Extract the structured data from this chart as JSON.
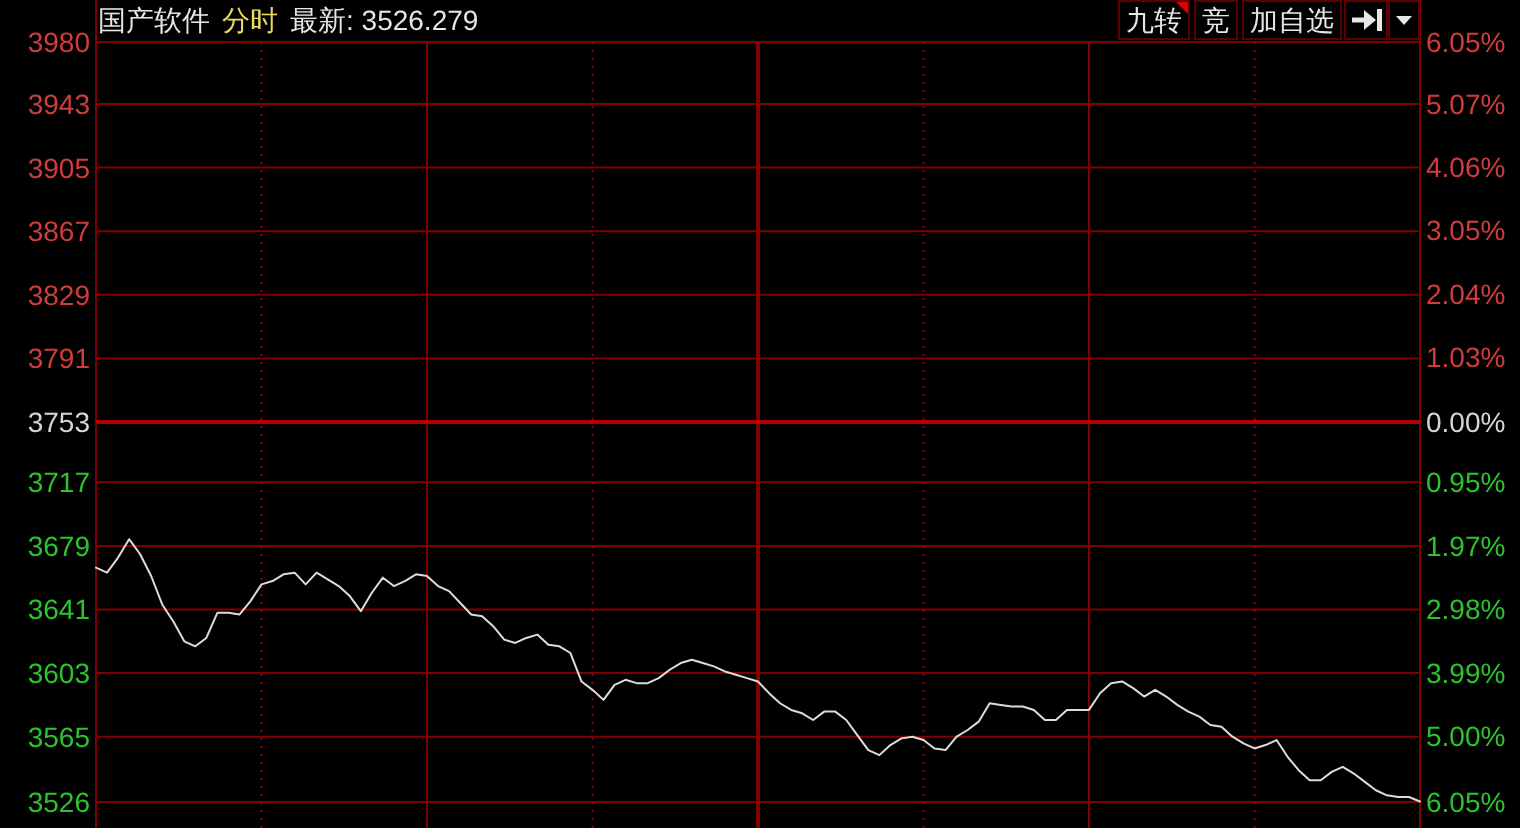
{
  "chart_data": {
    "type": "line",
    "title": "国产软件",
    "subtitle": "分时",
    "annotations": [
      "最新: 3526.279",
      "九转",
      "竞",
      "加自选"
    ],
    "categories": [
      null,
      null,
      null,
      null,
      null,
      null,
      null,
      null,
      null,
      null,
      null,
      null,
      null,
      null,
      null,
      null,
      null,
      null,
      null,
      null,
      null,
      null,
      null,
      null,
      null,
      null,
      null,
      null,
      null,
      null,
      null,
      null,
      null,
      null,
      null,
      null,
      null,
      null,
      null,
      null,
      null,
      null,
      null,
      null,
      null,
      null,
      null,
      null,
      null,
      null,
      null,
      null,
      null,
      null,
      null,
      null,
      null,
      null,
      null,
      null,
      null,
      null,
      null,
      null,
      null,
      null,
      null,
      null,
      null,
      null,
      null,
      null,
      null,
      null,
      null,
      null,
      null,
      null,
      null,
      null,
      null,
      null,
      null,
      null,
      null,
      null,
      null,
      null,
      null,
      null,
      null,
      null,
      null,
      null,
      null,
      null,
      null,
      null,
      null,
      null,
      null,
      null,
      null,
      null,
      null,
      null,
      null,
      null,
      null,
      null,
      null,
      null,
      null,
      null,
      null,
      null,
      null,
      null,
      null,
      null,
      null
    ],
    "values": [
      3666,
      3663,
      3672,
      3683,
      3674,
      3661,
      3644,
      3634,
      3622,
      3619,
      3624,
      3639,
      3639,
      3638,
      3646,
      3656,
      3658,
      3662,
      3663,
      3656,
      3663,
      3659,
      3655,
      3649,
      3640,
      3651,
      3660,
      3655,
      3658,
      3662,
      3661,
      3655,
      3652,
      3645,
      3638,
      3637,
      3631,
      3623,
      3621,
      3624,
      3626,
      3620,
      3619,
      3615,
      3598,
      3593,
      3587,
      3596,
      3599,
      3597,
      3597,
      3600,
      3605,
      3609,
      3611,
      3609,
      3607,
      3604,
      3602,
      3600,
      3598,
      3591,
      3585,
      3581,
      3579,
      3575,
      3580,
      3580,
      3575,
      3566,
      3557,
      3554,
      3560,
      3564,
      3565,
      3563,
      3558,
      3557,
      3565,
      3569,
      3574,
      3585,
      3584,
      3583,
      3583,
      3581,
      3575,
      3575,
      3581,
      3581,
      3581,
      3591,
      3597,
      3598,
      3594,
      3589,
      3593,
      3589,
      3584,
      3580,
      3577,
      3572,
      3571,
      3565,
      3561,
      3558,
      3560,
      3563,
      3553,
      3545,
      3539,
      3539,
      3544,
      3547,
      3543,
      3538,
      3533,
      3530,
      3529,
      3529,
      3526.279
    ],
    "color": "#dcdcdc",
    "ylim": [
      3526,
      3980
    ],
    "yticks": [
      3980,
      3943,
      3905,
      3867,
      3829,
      3791,
      3753,
      3717,
      3679,
      3641,
      3603,
      3565,
      3526
    ],
    "y2lim": [
      -6.05,
      6.05
    ],
    "y2ticks": [
      {
        "value": 6.05,
        "label": "6.05%"
      },
      {
        "value": 5.07,
        "label": "5.07%"
      },
      {
        "value": 4.06,
        "label": "4.06%"
      },
      {
        "value": 3.05,
        "label": "3.05%"
      },
      {
        "value": 2.04,
        "label": "2.04%"
      },
      {
        "value": 1.03,
        "label": "1.03%"
      },
      {
        "value": 0,
        "label": "0.00%"
      },
      {
        "value": -0.95,
        "label": "0.95%"
      },
      {
        "value": -1.97,
        "label": "1.97%"
      },
      {
        "value": -2.98,
        "label": "2.98%"
      },
      {
        "value": -3.99,
        "label": "3.99%"
      },
      {
        "value": -5.0,
        "label": "5.00%"
      },
      {
        "value": -6.05,
        "label": "6.05%"
      }
    ],
    "grid": true,
    "ref_lines": [
      {
        "axis": "y",
        "value": 3753,
        "color": "#b40000"
      }
    ]
  }
}
